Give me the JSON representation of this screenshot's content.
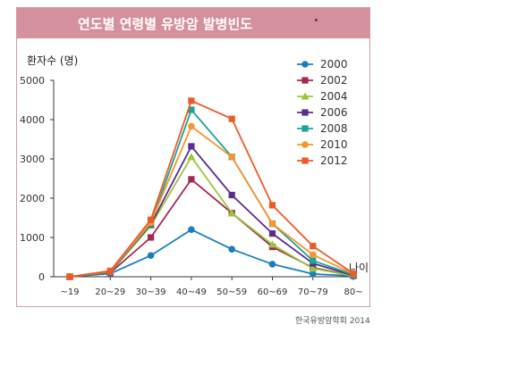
{
  "chart_data": {
    "type": "line",
    "title": "연도별 연령별 유방암 발병빈도",
    "ylabel": "환자수 (명)",
    "xlabel": "나이",
    "categories": [
      "~19",
      "20~29",
      "30~39",
      "40~49",
      "50~59",
      "60~69",
      "70~79",
      "80~"
    ],
    "ylim": [
      0,
      5000
    ],
    "yticks": [
      0,
      1000,
      2000,
      3000,
      4000,
      5000
    ],
    "legend_position": "top-right",
    "grid": false,
    "series": [
      {
        "name": "2000",
        "color": "#1a7fc1",
        "marker": "circle",
        "values": [
          0,
          80,
          540,
          1200,
          700,
          320,
          70,
          20
        ]
      },
      {
        "name": "2002",
        "color": "#a3294f",
        "marker": "square",
        "values": [
          0,
          100,
          1000,
          2480,
          1620,
          760,
          230,
          30
        ]
      },
      {
        "name": "2004",
        "color": "#98c93c",
        "marker": "triangle",
        "values": [
          0,
          110,
          1300,
          3050,
          1620,
          820,
          210,
          20
        ]
      },
      {
        "name": "2006",
        "color": "#5b2d8c",
        "marker": "square",
        "values": [
          0,
          120,
          1330,
          3320,
          2080,
          1100,
          340,
          30
        ]
      },
      {
        "name": "2008",
        "color": "#1aa597",
        "marker": "square",
        "values": [
          0,
          130,
          1350,
          4250,
          3050,
          1350,
          410,
          50
        ]
      },
      {
        "name": "2010",
        "color": "#f6962f",
        "marker": "circle",
        "values": [
          0,
          140,
          1380,
          3830,
          3050,
          1350,
          560,
          70
        ]
      },
      {
        "name": "2012",
        "color": "#ee5a25",
        "marker": "square",
        "values": [
          0,
          150,
          1450,
          4480,
          4020,
          1820,
          780,
          80
        ]
      }
    ]
  },
  "credit": "한국유방암학회 2014"
}
